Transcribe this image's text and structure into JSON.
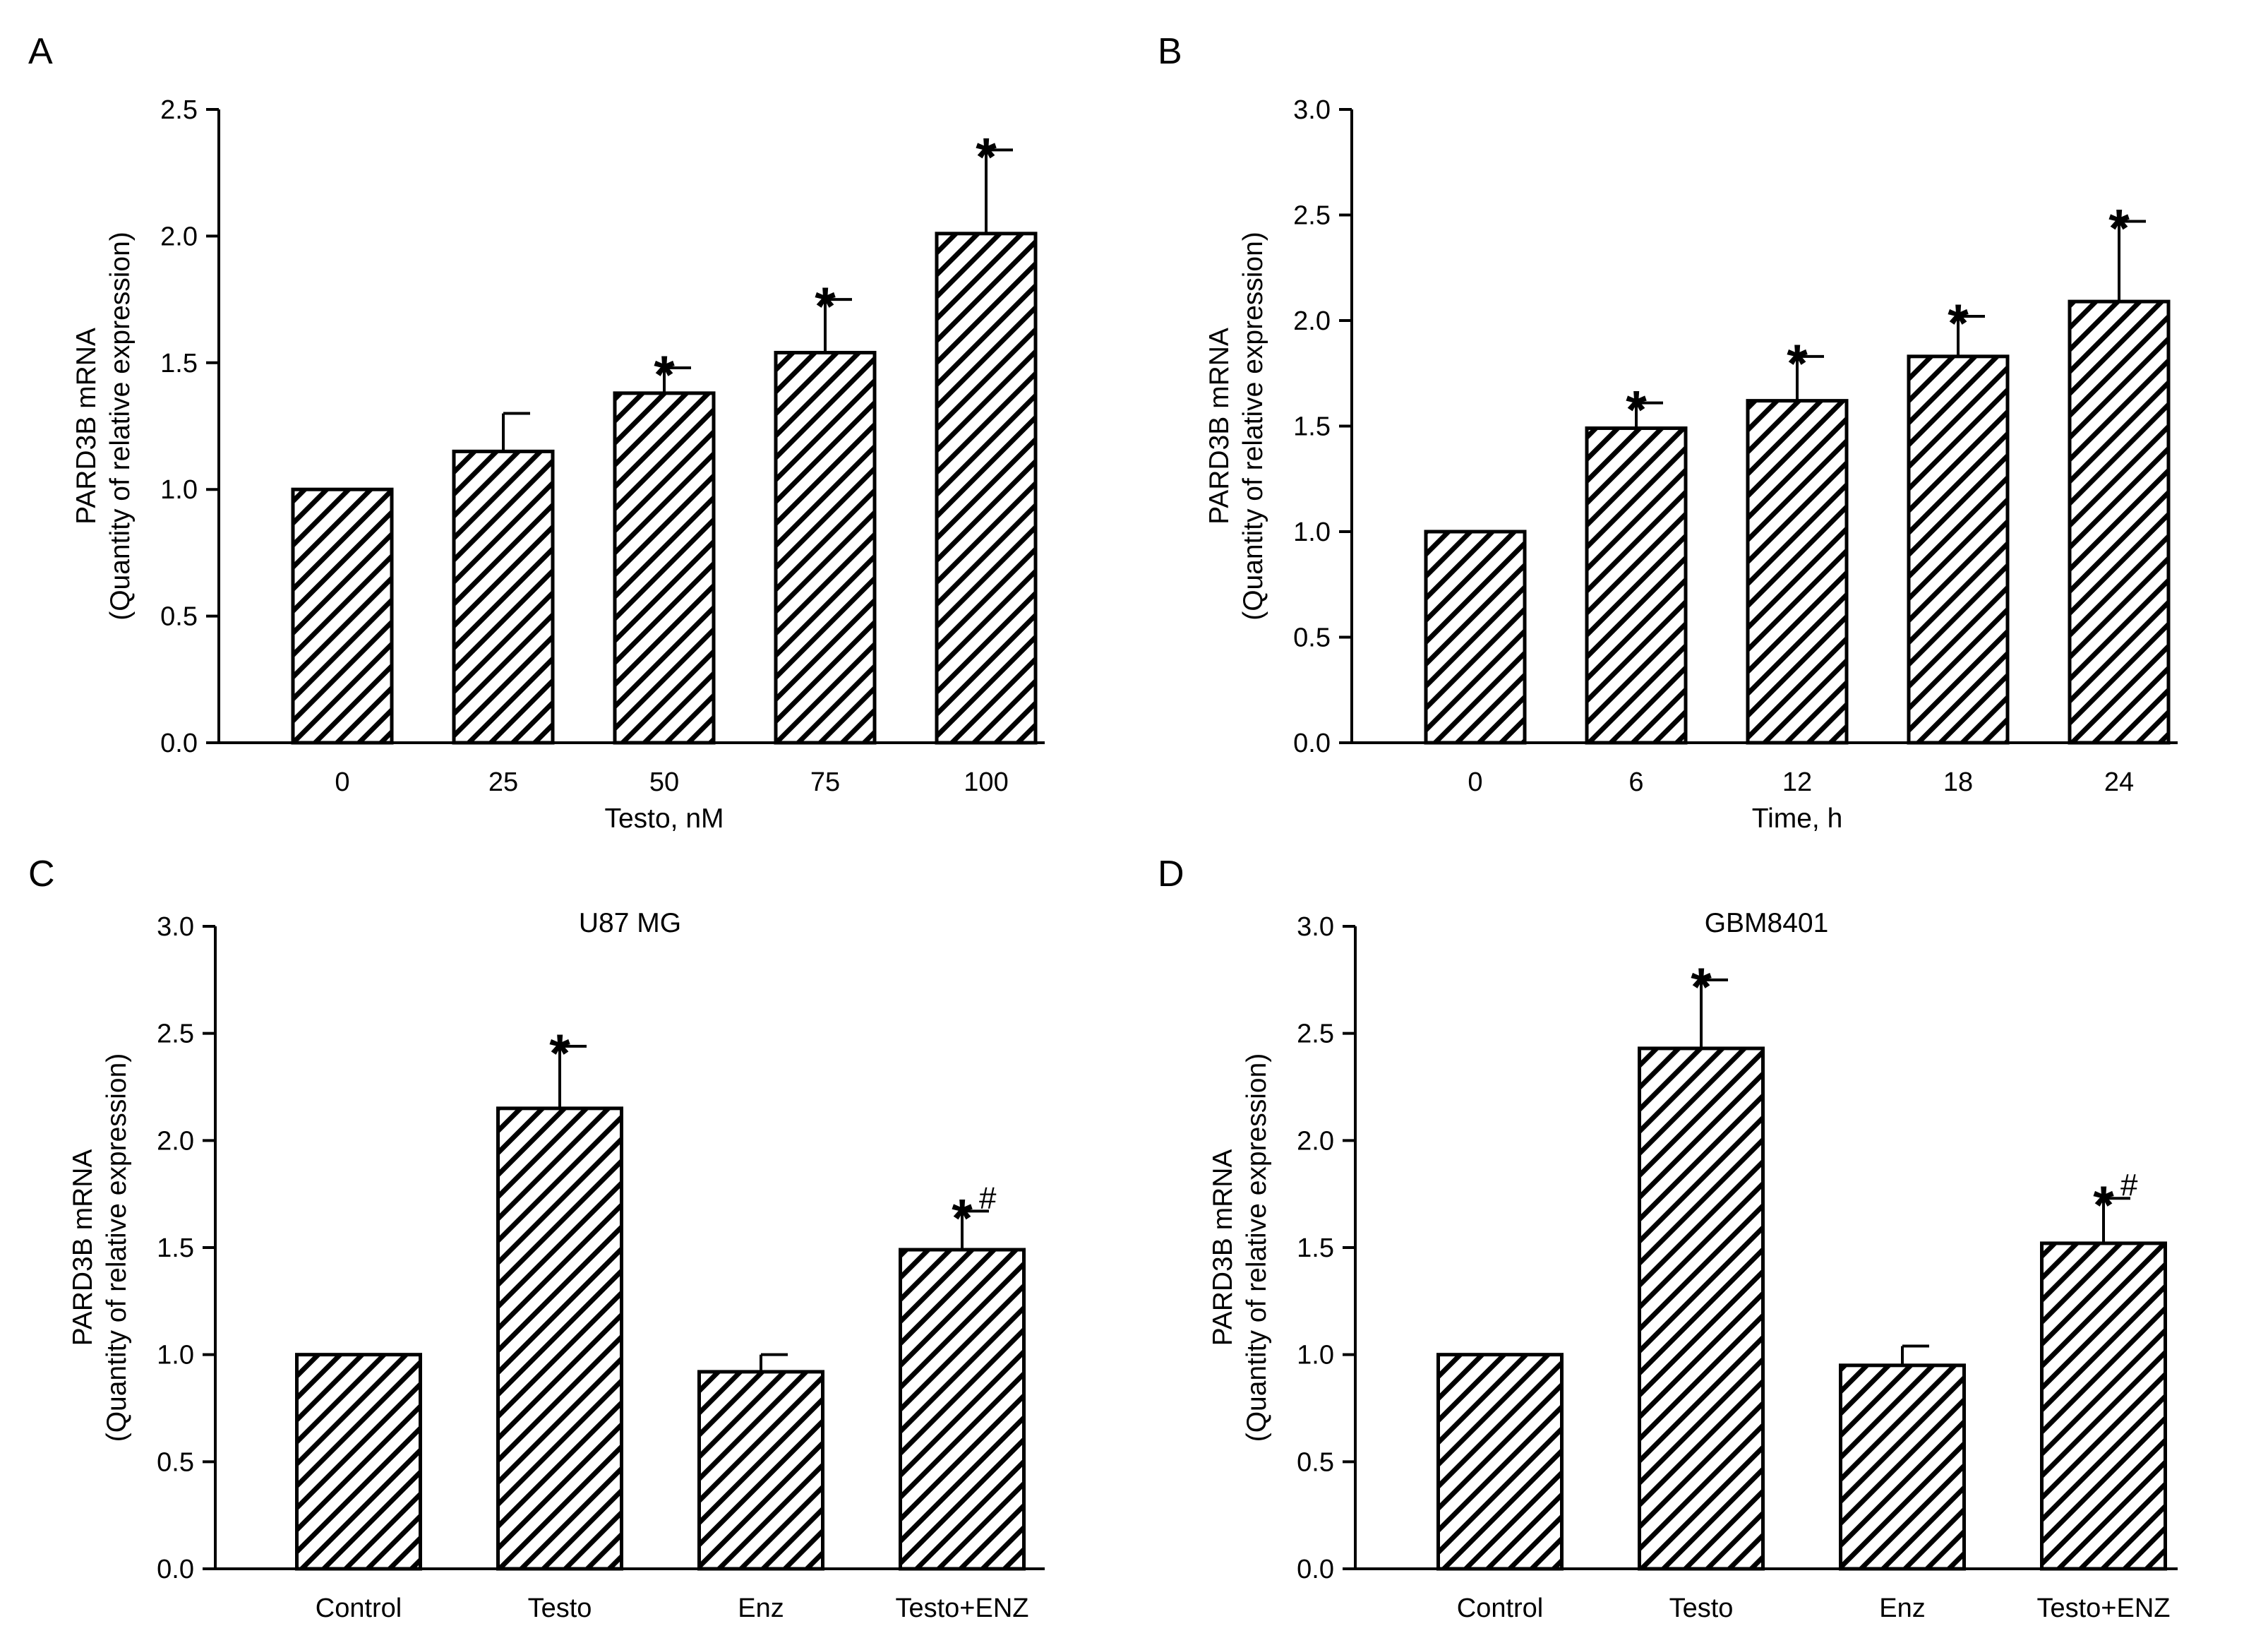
{
  "hatch_color": "#000000",
  "chart_data": [
    {
      "panel": "A",
      "type": "bar",
      "title": "",
      "xlabel": "Testo, nM",
      "ylabel": [
        "PARD3B mRNA",
        "(Quantity of relative expression)"
      ],
      "categories": [
        "0",
        "25",
        "50",
        "75",
        "100"
      ],
      "values": [
        1.0,
        1.15,
        1.38,
        1.54,
        2.01
      ],
      "errors": [
        0,
        0.15,
        0.1,
        0.21,
        0.33
      ],
      "annotations": [
        "",
        "",
        "*",
        "*",
        "*"
      ],
      "ylim": [
        0,
        2.5
      ],
      "yticks": [
        "0.0",
        "0.5",
        "1.0",
        "1.5",
        "2.0",
        "2.5"
      ],
      "grid": false,
      "fill": "diagonal-hatch"
    },
    {
      "panel": "B",
      "type": "bar",
      "title": "",
      "xlabel": "Time, h",
      "ylabel": [
        "PARD3B mRNA",
        "(Quantity of relative expression)"
      ],
      "categories": [
        "0",
        "6",
        "12",
        "18",
        "24"
      ],
      "values": [
        1.0,
        1.49,
        1.62,
        1.83,
        2.09
      ],
      "errors": [
        0,
        0.12,
        0.21,
        0.19,
        0.38
      ],
      "annotations": [
        "",
        "*",
        "*",
        "*",
        "*"
      ],
      "ylim": [
        0,
        3.0
      ],
      "yticks": [
        "0.0",
        "0.5",
        "1.0",
        "1.5",
        "2.0",
        "2.5",
        "3.0"
      ],
      "grid": false,
      "fill": "diagonal-hatch"
    },
    {
      "panel": "C",
      "type": "bar",
      "title": "U87 MG",
      "xlabel": "",
      "ylabel": [
        "PARD3B mRNA",
        "(Quantity of relative expression)"
      ],
      "categories": [
        "Control",
        "Testo",
        "Enz",
        "Testo+ENZ"
      ],
      "values": [
        1.0,
        2.15,
        0.92,
        1.49
      ],
      "errors": [
        0,
        0.29,
        0.08,
        0.18
      ],
      "annotations": [
        "",
        "*",
        "",
        "*#"
      ],
      "ylim": [
        0,
        3.0
      ],
      "yticks": [
        "0.0",
        "0.5",
        "1.0",
        "1.5",
        "2.0",
        "2.5",
        "3.0"
      ],
      "grid": false,
      "fill": "diagonal-hatch"
    },
    {
      "panel": "D",
      "type": "bar",
      "title": "GBM8401",
      "xlabel": "",
      "ylabel": [
        "PARD3B mRNA",
        "(Quantity of relative expression)"
      ],
      "categories": [
        "Control",
        "Testo",
        "Enz",
        "Testo+ENZ"
      ],
      "values": [
        1.0,
        2.43,
        0.95,
        1.52
      ],
      "errors": [
        0,
        0.32,
        0.09,
        0.21
      ],
      "annotations": [
        "",
        "*",
        "",
        "*#"
      ],
      "ylim": [
        0,
        3.0
      ],
      "yticks": [
        "0.0",
        "0.5",
        "1.0",
        "1.5",
        "2.0",
        "2.5",
        "3.0"
      ],
      "grid": false,
      "fill": "diagonal-hatch"
    }
  ]
}
